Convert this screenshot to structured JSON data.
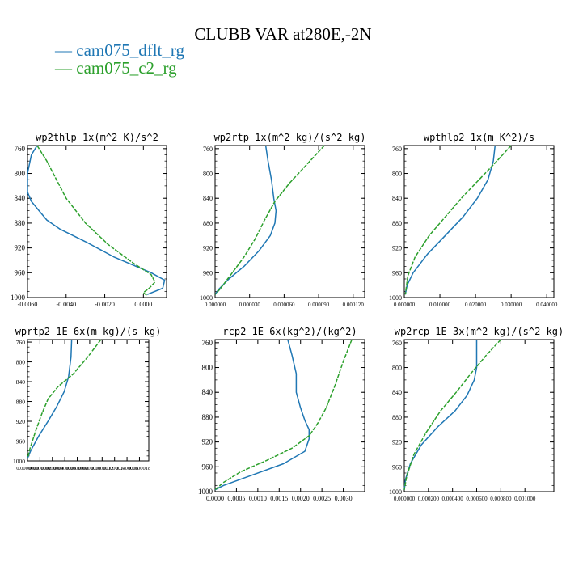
{
  "title": "CLUBB VAR at280E,-2N",
  "legend": [
    {
      "label": "— cam075_dflt_rg",
      "color": "#1f77b4"
    },
    {
      "label": "— cam075_c2_rg",
      "color": "#2ca02c"
    }
  ],
  "chart_data": [
    {
      "type": "line",
      "title": "wp2thlp  1x(m^2 K)/s^2",
      "xticks": [
        "-0.0060",
        "-0.0040",
        "-0.0020",
        "0.0000"
      ],
      "xtick_values": [
        -0.006,
        -0.004,
        -0.002,
        0.0
      ],
      "xlim": [
        -0.006,
        0.0012
      ],
      "yticks": [
        "760",
        "800",
        "840",
        "880",
        "920",
        "960",
        "1000"
      ],
      "ytick_values": [
        760,
        800,
        840,
        880,
        920,
        960,
        1000
      ],
      "ylim": [
        1000,
        755
      ],
      "series": [
        {
          "name": "cam075_dflt_rg",
          "color": "#1f77b4",
          "x": [
            -0.0055,
            -0.0058,
            -0.006,
            -0.006,
            -0.0058,
            -0.0054,
            -0.005,
            -0.0043,
            -0.003,
            -0.0015,
            0.0004,
            0.0011,
            0.001,
            0.0002
          ],
          "y": [
            755,
            770,
            800,
            830,
            845,
            860,
            875,
            890,
            910,
            935,
            960,
            972,
            985,
            995
          ]
        },
        {
          "name": "cam075_c2_rg",
          "color": "#2ca02c",
          "x": [
            -0.0055,
            -0.005,
            -0.0045,
            -0.004,
            -0.003,
            -0.0018,
            -0.0005,
            0.0004,
            0.0006,
            0.0003,
            0.0,
            0.0002
          ],
          "y": [
            755,
            780,
            810,
            840,
            880,
            915,
            945,
            963,
            975,
            985,
            992,
            997
          ]
        }
      ]
    },
    {
      "type": "line",
      "title": "wp2rtp  1x(m^2 kg)/(s^2 kg)",
      "xticks": [
        "0.000000",
        "0.000030",
        "0.000060",
        "0.000090",
        "0.000120"
      ],
      "xtick_values": [
        0.0,
        3e-05,
        6e-05,
        9e-05,
        0.00012
      ],
      "xlim": [
        0.0,
        0.00013
      ],
      "yticks": [
        "760",
        "800",
        "840",
        "880",
        "920",
        "960",
        "1000"
      ],
      "ytick_values": [
        760,
        800,
        840,
        880,
        920,
        960,
        1000
      ],
      "ylim": [
        1000,
        755
      ],
      "series": [
        {
          "name": "cam075_dflt_rg",
          "color": "#1f77b4",
          "x": [
            4.4e-05,
            4.6e-05,
            4.9e-05,
            5.1e-05,
            5.3e-05,
            5.2e-05,
            4.8e-05,
            3.8e-05,
            2.5e-05,
            1.2e-05,
            3e-06,
            0.0
          ],
          "y": [
            755,
            780,
            810,
            840,
            860,
            880,
            900,
            925,
            950,
            970,
            987,
            995
          ]
        },
        {
          "name": "cam075_c2_rg",
          "color": "#2ca02c",
          "x": [
            9.5e-05,
            8e-05,
            6.5e-05,
            5.2e-05,
            4.3e-05,
            3.5e-05,
            2.5e-05,
            1.3e-05,
            4e-06,
            0.0
          ],
          "y": [
            755,
            785,
            815,
            845,
            875,
            905,
            935,
            965,
            987,
            995
          ]
        }
      ]
    },
    {
      "type": "line",
      "title": "wpthlp2  1x(m K^2)/s",
      "xticks": [
        "0.000000",
        "0.010000",
        "0.020000",
        "0.030000",
        "0.040000"
      ],
      "xtick_values": [
        0.0,
        0.01,
        0.02,
        0.03,
        0.04
      ],
      "xlim": [
        0.0,
        0.042
      ],
      "yticks": [
        "760",
        "800",
        "840",
        "880",
        "920",
        "960",
        "1000"
      ],
      "ytick_values": [
        760,
        800,
        840,
        880,
        920,
        960,
        1000
      ],
      "ylim": [
        1000,
        755
      ],
      "series": [
        {
          "name": "cam075_dflt_rg",
          "color": "#1f77b4",
          "x": [
            0.0255,
            0.025,
            0.0235,
            0.0205,
            0.0165,
            0.0115,
            0.0065,
            0.0025,
            0.0008,
            0.0003
          ],
          "y": [
            755,
            780,
            810,
            840,
            870,
            900,
            930,
            960,
            980,
            995
          ]
        },
        {
          "name": "cam075_c2_rg",
          "color": "#2ca02c",
          "x": [
            0.03,
            0.026,
            0.021,
            0.016,
            0.0115,
            0.007,
            0.003,
            0.001,
            0.0003
          ],
          "y": [
            755,
            780,
            810,
            840,
            870,
            900,
            935,
            965,
            995
          ]
        }
      ]
    },
    {
      "type": "line",
      "title": "wprtp2  1E-6x(m kg)/(s kg)",
      "xticks": [
        "0.0000000",
        "0.0000002",
        "0.0000004",
        "0.0000006",
        "0.0000008",
        "0.0000010",
        "0.0000012",
        "0.0000014",
        "0.0000016",
        "0.0000018"
      ],
      "xtick_values": [
        0.0,
        2e-07,
        4e-07,
        6e-07,
        8e-07,
        1e-06,
        1.2e-06,
        1.4e-06,
        1.6e-06,
        1.8e-06
      ],
      "xlim": [
        0.0,
        1.95e-06
      ],
      "yticks": [
        "760",
        "800",
        "840",
        "880",
        "920",
        "960",
        "1000"
      ],
      "ytick_values": [
        760,
        800,
        840,
        880,
        920,
        960,
        1000
      ],
      "ylim": [
        1000,
        755
      ],
      "series": [
        {
          "name": "cam075_dflt_rg",
          "color": "#1f77b4",
          "x": [
            7.1e-07,
            7e-07,
            6.6e-07,
            5.9e-07,
            4.7e-07,
            3.3e-07,
            1.8e-07,
            5e-08,
            0.0
          ],
          "y": [
            755,
            790,
            830,
            860,
            890,
            920,
            950,
            980,
            995
          ]
        },
        {
          "name": "cam075_c2_rg",
          "color": "#2ca02c",
          "x": [
            1.18e-06,
            9.7e-07,
            7.3e-07,
            4.9e-07,
            3.3e-07,
            2.3e-07,
            1.3e-07,
            4e-08,
            0.0
          ],
          "y": [
            755,
            790,
            825,
            850,
            875,
            905,
            940,
            975,
            995
          ]
        }
      ]
    },
    {
      "type": "line",
      "title": "rcp2  1E-6x(kg^2)/(kg^2)",
      "xticks": [
        "0.0000",
        "0.0005",
        "0.0010",
        "0.0015",
        "0.0020",
        "0.0025",
        "0.0030"
      ],
      "xtick_values": [
        0.0,
        0.0005,
        0.001,
        0.0015,
        0.002,
        0.0025,
        0.003
      ],
      "xlim": [
        0.0,
        0.0035
      ],
      "yticks": [
        "760",
        "800",
        "840",
        "880",
        "920",
        "960",
        "1000"
      ],
      "ytick_values": [
        760,
        800,
        840,
        880,
        920,
        960,
        1000
      ],
      "ylim": [
        1000,
        755
      ],
      "series": [
        {
          "name": "cam075_dflt_rg",
          "color": "#1f77b4",
          "x": [
            0.0017,
            0.0018,
            0.0019,
            0.0019,
            0.002,
            0.0021,
            0.0022,
            0.0022,
            0.0021,
            0.0016,
            0.0008,
            0.0002,
            0.0
          ],
          "y": [
            755,
            780,
            810,
            840,
            865,
            885,
            900,
            915,
            935,
            955,
            975,
            990,
            997
          ]
        },
        {
          "name": "cam075_c2_rg",
          "color": "#2ca02c",
          "x": [
            0.0032,
            0.003,
            0.0028,
            0.0026,
            0.0024,
            0.0022,
            0.0018,
            0.0012,
            0.0006,
            0.0002,
            0.0
          ],
          "y": [
            755,
            790,
            830,
            865,
            890,
            910,
            930,
            950,
            968,
            985,
            997
          ]
        }
      ]
    },
    {
      "type": "line",
      "title": "wp2rcp  1E-3x(m^2 kg)/(s^2 kg)",
      "xticks": [
        "0.000000",
        "0.000200",
        "0.000400",
        "0.000600",
        "0.000800",
        "0.001000"
      ],
      "xtick_values": [
        0.0,
        0.0002,
        0.0004,
        0.0006,
        0.0008,
        0.001
      ],
      "xlim": [
        0.0,
        0.00124
      ],
      "yticks": [
        "760",
        "800",
        "840",
        "880",
        "920",
        "960",
        "1000"
      ],
      "ytick_values": [
        760,
        800,
        840,
        880,
        920,
        960,
        1000
      ],
      "ylim": [
        1000,
        755
      ],
      "series": [
        {
          "name": "cam075_dflt_rg",
          "color": "#1f77b4",
          "x": [
            0.0006,
            0.0006,
            0.0006,
            0.00058,
            0.00052,
            0.00042,
            0.00028,
            0.00014,
            5e-05,
            1e-05,
            0.0
          ],
          "y": [
            755,
            780,
            800,
            820,
            845,
            870,
            895,
            925,
            955,
            980,
            997
          ]
        },
        {
          "name": "cam075_c2_rg",
          "color": "#2ca02c",
          "x": [
            0.0008,
            0.00068,
            0.00055,
            0.00043,
            0.0003,
            0.00018,
            8e-05,
            2e-05,
            0.0
          ],
          "y": [
            755,
            780,
            810,
            840,
            870,
            905,
            940,
            975,
            997
          ]
        }
      ]
    }
  ]
}
